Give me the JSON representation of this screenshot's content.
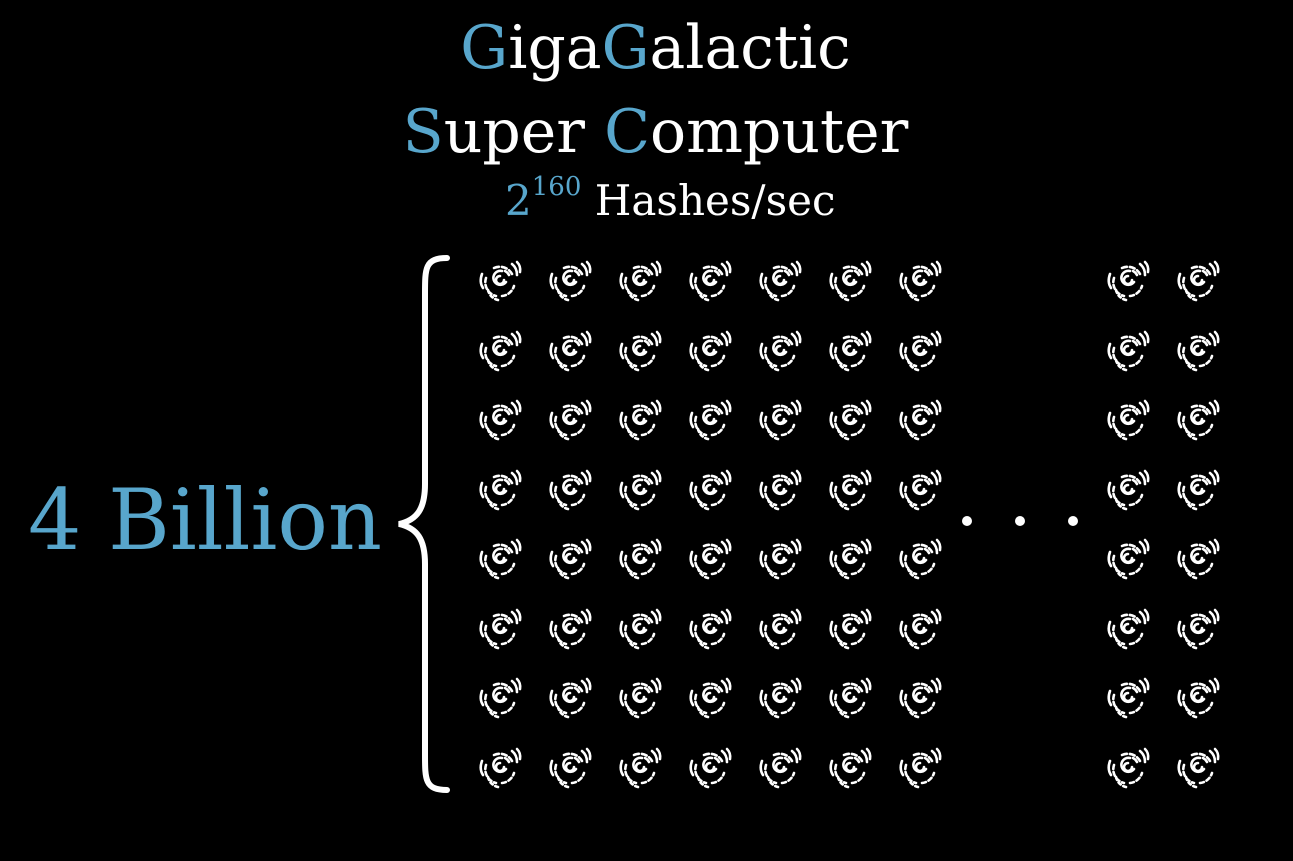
{
  "title": {
    "line1": [
      {
        "text": "G",
        "accent": true
      },
      {
        "text": "iga",
        "accent": false
      },
      {
        "text": "G",
        "accent": true
      },
      {
        "text": "alactic",
        "accent": false
      }
    ],
    "line2": [
      {
        "text": "S",
        "accent": true
      },
      {
        "text": "uper ",
        "accent": false
      },
      {
        "text": "C",
        "accent": true
      },
      {
        "text": "omputer",
        "accent": false
      }
    ]
  },
  "rate": {
    "base": "2",
    "exponent": "160",
    "unit": "Hashes/sec"
  },
  "count_label": "4 Billion",
  "galaxy_grid": {
    "icon": "galaxy-icon",
    "rows": 8,
    "left_columns": 7,
    "right_columns": 2,
    "ellipsis": "· · ·"
  },
  "colors": {
    "background": "#000000",
    "accent": "#58a6cc",
    "text": "#ffffff"
  }
}
